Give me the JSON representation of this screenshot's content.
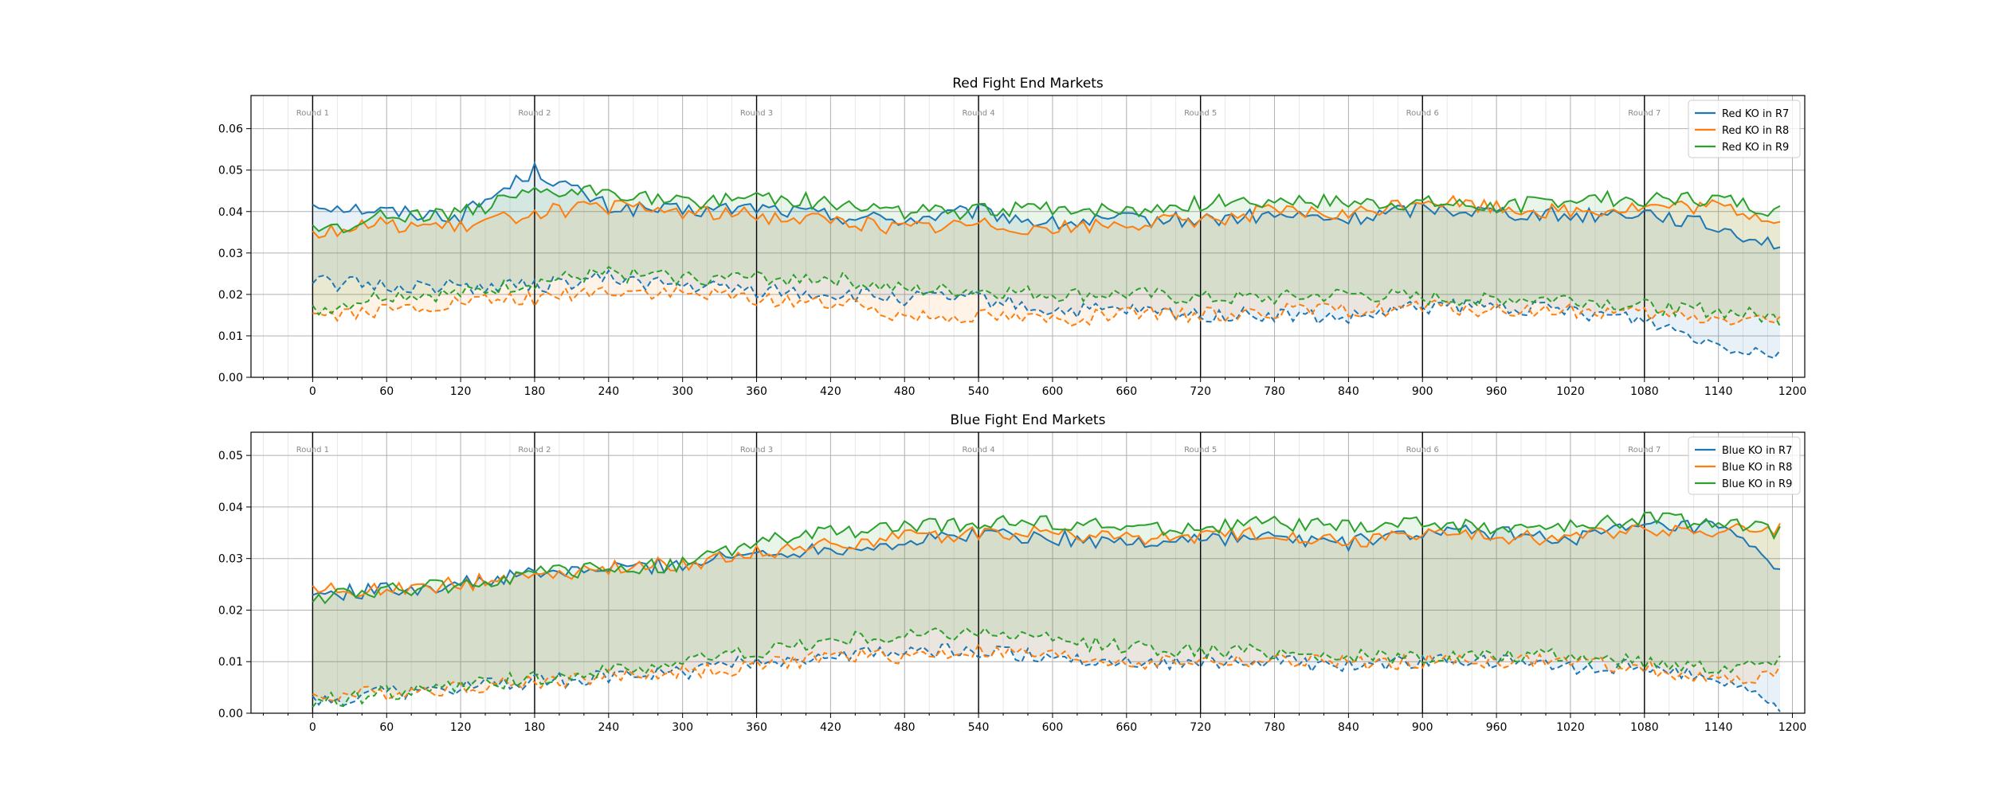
{
  "chart_data": [
    {
      "type": "line",
      "title": "Red Fight End Markets",
      "xlabel": "",
      "ylabel": "",
      "xlim": [
        -50,
        1210
      ],
      "ylim": [
        0,
        0.068
      ],
      "xticks": [
        0,
        60,
        120,
        180,
        240,
        300,
        360,
        420,
        480,
        540,
        600,
        660,
        720,
        780,
        840,
        900,
        960,
        1020,
        1080,
        1140,
        1200
      ],
      "yticks": [
        0,
        0.01,
        0.02,
        0.03,
        0.04,
        0.05,
        0.06
      ],
      "ytick_labels": [
        "0.00",
        "0.01",
        "0.02",
        "0.03",
        "0.04",
        "0.05",
        "0.06"
      ],
      "grid": true,
      "legend_position": "top-right",
      "rounds": [
        {
          "x": 0,
          "label": "Round 1"
        },
        {
          "x": 180,
          "label": "Round 2"
        },
        {
          "x": 360,
          "label": "Round 3"
        },
        {
          "x": 540,
          "label": "Round 4"
        },
        {
          "x": 720,
          "label": "Round 5"
        },
        {
          "x": 900,
          "label": "Round 6"
        },
        {
          "x": 1080,
          "label": "Round 7"
        }
      ],
      "x": [
        0,
        60,
        120,
        180,
        240,
        300,
        360,
        420,
        480,
        540,
        600,
        660,
        720,
        780,
        840,
        900,
        960,
        1020,
        1080,
        1140,
        1190
      ],
      "series": [
        {
          "name": "Red KO in R7",
          "color": "#1f77b4",
          "upper": [
            0.042,
            0.04,
            0.039,
            0.05,
            0.041,
            0.04,
            0.041,
            0.039,
            0.038,
            0.04,
            0.037,
            0.038,
            0.038,
            0.039,
            0.038,
            0.041,
            0.04,
            0.039,
            0.04,
            0.036,
            0.032
          ],
          "lower": [
            0.023,
            0.022,
            0.022,
            0.022,
            0.024,
            0.022,
            0.021,
            0.02,
            0.019,
            0.019,
            0.016,
            0.016,
            0.015,
            0.015,
            0.014,
            0.017,
            0.017,
            0.016,
            0.014,
            0.008,
            0.006
          ]
        },
        {
          "name": "Red KO in R8",
          "color": "#ff7f0e",
          "upper": [
            0.035,
            0.037,
            0.036,
            0.04,
            0.041,
            0.04,
            0.039,
            0.038,
            0.036,
            0.037,
            0.036,
            0.037,
            0.038,
            0.04,
            0.039,
            0.043,
            0.041,
            0.04,
            0.041,
            0.041,
            0.038
          ],
          "lower": [
            0.015,
            0.016,
            0.018,
            0.019,
            0.021,
            0.02,
            0.019,
            0.018,
            0.015,
            0.015,
            0.014,
            0.015,
            0.015,
            0.016,
            0.016,
            0.017,
            0.016,
            0.016,
            0.015,
            0.014,
            0.014
          ]
        },
        {
          "name": "Red KO in R9",
          "color": "#2ca02c",
          "upper": [
            0.035,
            0.039,
            0.04,
            0.044,
            0.045,
            0.042,
            0.044,
            0.042,
            0.04,
            0.04,
            0.041,
            0.04,
            0.042,
            0.043,
            0.042,
            0.042,
            0.041,
            0.043,
            0.043,
            0.043,
            0.04
          ],
          "lower": [
            0.016,
            0.02,
            0.02,
            0.023,
            0.025,
            0.024,
            0.024,
            0.024,
            0.021,
            0.021,
            0.02,
            0.02,
            0.019,
            0.019,
            0.02,
            0.019,
            0.019,
            0.019,
            0.017,
            0.016,
            0.014
          ]
        }
      ]
    },
    {
      "type": "line",
      "title": "Blue Fight End Markets",
      "xlabel": "",
      "ylabel": "",
      "xlim": [
        -50,
        1210
      ],
      "ylim": [
        0,
        0.0545
      ],
      "xticks": [
        0,
        60,
        120,
        180,
        240,
        300,
        360,
        420,
        480,
        540,
        600,
        660,
        720,
        780,
        840,
        900,
        960,
        1020,
        1080,
        1140,
        1200
      ],
      "yticks": [
        0,
        0.01,
        0.02,
        0.03,
        0.04,
        0.05
      ],
      "ytick_labels": [
        "0.00",
        "0.01",
        "0.02",
        "0.03",
        "0.04",
        "0.05"
      ],
      "grid": true,
      "legend_position": "top-right",
      "rounds": [
        {
          "x": 0,
          "label": "Round 1"
        },
        {
          "x": 180,
          "label": "Round 2"
        },
        {
          "x": 360,
          "label": "Round 3"
        },
        {
          "x": 540,
          "label": "Round 4"
        },
        {
          "x": 720,
          "label": "Round 5"
        },
        {
          "x": 900,
          "label": "Round 6"
        },
        {
          "x": 1080,
          "label": "Round 7"
        }
      ],
      "x": [
        0,
        60,
        120,
        180,
        240,
        300,
        360,
        420,
        480,
        540,
        600,
        660,
        720,
        780,
        840,
        900,
        960,
        1020,
        1080,
        1140,
        1190
      ],
      "series": [
        {
          "name": "Blue KO in R7",
          "color": "#1f77b4",
          "upper": [
            0.023,
            0.024,
            0.025,
            0.027,
            0.028,
            0.029,
            0.031,
            0.032,
            0.033,
            0.035,
            0.034,
            0.033,
            0.034,
            0.034,
            0.033,
            0.035,
            0.035,
            0.034,
            0.036,
            0.036,
            0.028
          ],
          "lower": [
            0.002,
            0.004,
            0.005,
            0.006,
            0.007,
            0.008,
            0.01,
            0.011,
            0.012,
            0.012,
            0.011,
            0.01,
            0.01,
            0.01,
            0.009,
            0.01,
            0.01,
            0.009,
            0.009,
            0.007,
            0.001
          ]
        },
        {
          "name": "Blue KO in R8",
          "color": "#ff7f0e",
          "upper": [
            0.024,
            0.024,
            0.025,
            0.027,
            0.028,
            0.029,
            0.031,
            0.033,
            0.034,
            0.035,
            0.035,
            0.034,
            0.034,
            0.035,
            0.033,
            0.035,
            0.034,
            0.034,
            0.036,
            0.035,
            0.036
          ],
          "lower": [
            0.003,
            0.004,
            0.005,
            0.006,
            0.007,
            0.008,
            0.009,
            0.011,
            0.011,
            0.012,
            0.011,
            0.01,
            0.01,
            0.01,
            0.01,
            0.01,
            0.01,
            0.01,
            0.009,
            0.006,
            0.008
          ]
        },
        {
          "name": "Blue KO in R9",
          "color": "#2ca02c",
          "upper": [
            0.022,
            0.024,
            0.025,
            0.027,
            0.028,
            0.029,
            0.033,
            0.035,
            0.036,
            0.037,
            0.037,
            0.036,
            0.036,
            0.037,
            0.036,
            0.037,
            0.036,
            0.036,
            0.038,
            0.037,
            0.035
          ],
          "lower": [
            0.002,
            0.004,
            0.005,
            0.007,
            0.008,
            0.01,
            0.012,
            0.014,
            0.015,
            0.016,
            0.014,
            0.013,
            0.012,
            0.012,
            0.011,
            0.011,
            0.011,
            0.011,
            0.01,
            0.009,
            0.01
          ]
        }
      ]
    }
  ]
}
